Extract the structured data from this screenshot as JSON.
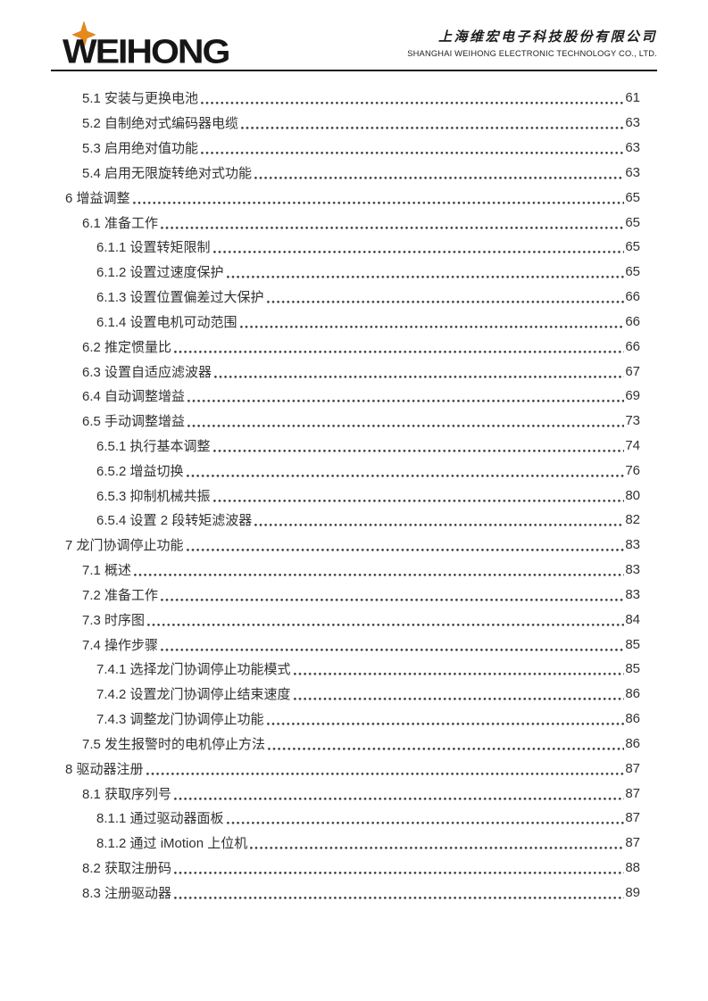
{
  "header": {
    "logo_text": "WEIHONG",
    "logo_star_color": "#E8891B",
    "logo_star_color_dark": "#C97414",
    "company_cn": "上海维宏电子科技股份有限公司",
    "company_en": "SHANGHAI WEIHONG ELECTRONIC TECHNOLOGY CO., LTD."
  },
  "toc": {
    "entries": [
      {
        "level": 2,
        "title": "5.1 安装与更换电池",
        "page": "61"
      },
      {
        "level": 2,
        "title": "5.2 自制绝对式编码器电缆",
        "page": "63"
      },
      {
        "level": 2,
        "title": "5.3 启用绝对值功能",
        "page": "63"
      },
      {
        "level": 2,
        "title": "5.4 启用无限旋转绝对式功能",
        "page": "63"
      },
      {
        "level": 1,
        "title": "6 增益调整",
        "page": "65"
      },
      {
        "level": 2,
        "title": "6.1 准备工作",
        "page": "65"
      },
      {
        "level": 3,
        "title": "6.1.1 设置转矩限制",
        "page": "65"
      },
      {
        "level": 3,
        "title": "6.1.2 设置过速度保护",
        "page": "65"
      },
      {
        "level": 3,
        "title": "6.1.3 设置位置偏差过大保护",
        "page": "66"
      },
      {
        "level": 3,
        "title": "6.1.4 设置电机可动范围",
        "page": "66"
      },
      {
        "level": 2,
        "title": "6.2 推定惯量比",
        "page": "66"
      },
      {
        "level": 2,
        "title": "6.3 设置自适应滤波器",
        "page": "67"
      },
      {
        "level": 2,
        "title": "6.4 自动调整增益",
        "page": "69"
      },
      {
        "level": 2,
        "title": "6.5 手动调整增益",
        "page": "73"
      },
      {
        "level": 3,
        "title": "6.5.1 执行基本调整",
        "page": "74"
      },
      {
        "level": 3,
        "title": "6.5.2 增益切换",
        "page": "76"
      },
      {
        "level": 3,
        "title": "6.5.3 抑制机械共振",
        "page": "80"
      },
      {
        "level": 3,
        "title": "6.5.4 设置 2 段转矩滤波器",
        "page": "82"
      },
      {
        "level": 1,
        "title": "7 龙门协调停止功能",
        "page": "83"
      },
      {
        "level": 2,
        "title": "7.1 概述",
        "page": "83"
      },
      {
        "level": 2,
        "title": "7.2 准备工作",
        "page": "83"
      },
      {
        "level": 2,
        "title": "7.3 时序图",
        "page": "84"
      },
      {
        "level": 2,
        "title": "7.4 操作步骤",
        "page": "85"
      },
      {
        "level": 3,
        "title": "7.4.1 选择龙门协调停止功能模式",
        "page": "85"
      },
      {
        "level": 3,
        "title": "7.4.2 设置龙门协调停止结束速度",
        "page": "86"
      },
      {
        "level": 3,
        "title": "7.4.3 调整龙门协调停止功能",
        "page": "86"
      },
      {
        "level": 2,
        "title": "7.5 发生报警时的电机停止方法",
        "page": "86"
      },
      {
        "level": 1,
        "title": "8 驱动器注册",
        "page": "87"
      },
      {
        "level": 2,
        "title": "8.1 获取序列号",
        "page": "87"
      },
      {
        "level": 3,
        "title": "8.1.1 通过驱动器面板",
        "page": "87"
      },
      {
        "level": 3,
        "title": "8.1.2 通过 iMotion 上位机",
        "page": "87"
      },
      {
        "level": 2,
        "title": "8.2 获取注册码",
        "page": "88"
      },
      {
        "level": 2,
        "title": "8.3 注册驱动器",
        "page": "89"
      }
    ]
  }
}
